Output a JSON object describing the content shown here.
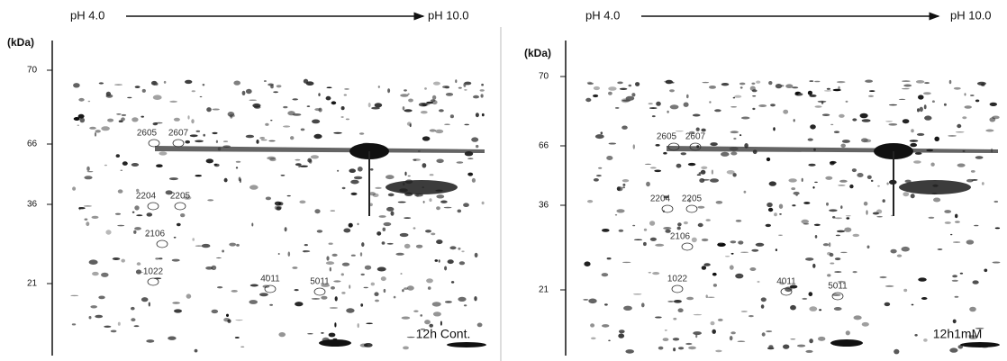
{
  "panels": [
    {
      "ph_start": "pH 4.0",
      "ph_end": "pH 10.0",
      "unit": "(kDa)",
      "markers": [
        70,
        66,
        36,
        21
      ],
      "spots": [
        "2605",
        "2607",
        "2204",
        "2205",
        "2106",
        "1022",
        "4011",
        "5011"
      ],
      "condition": "12h Cont."
    },
    {
      "ph_start": "pH 4.0",
      "ph_end": "pH 10.0",
      "unit": "(kDa)",
      "markers": [
        70,
        66,
        36,
        21
      ],
      "spots": [
        "2605",
        "2607",
        "2204",
        "2205",
        "2106",
        "1022",
        "4011",
        "5011"
      ],
      "condition": "12h1mM"
    }
  ]
}
